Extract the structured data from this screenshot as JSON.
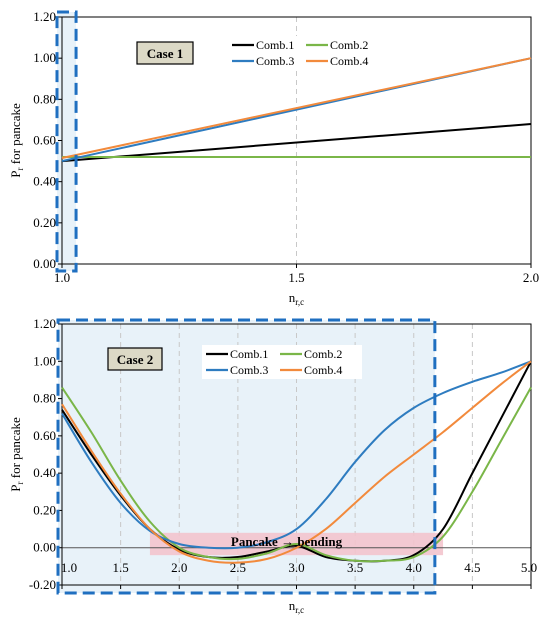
{
  "colors": {
    "comb1": "#000000",
    "comb2": "#7ab648",
    "comb3": "#2e7cc0",
    "comb4": "#f28a3c",
    "highlight_box": "#1f6fc0",
    "highlight_fill": "#e8f2f9",
    "pink_band": "#f3c4cd",
    "case_box_fill": "#dcd9c6",
    "grid": "#c8c8c8"
  },
  "chart_data": [
    {
      "type": "line",
      "title": "",
      "xlabel": "n",
      "xlabel_sub": "r,c",
      "ylabel_main": "P",
      "ylabel_sub": "r",
      "ylabel_rest": " for pancake",
      "xlim": [
        1.0,
        2.0
      ],
      "ylim": [
        0.0,
        1.2
      ],
      "xticks": [
        1.0,
        1.5,
        2.0
      ],
      "xtick_labels": [
        "1.0",
        "1.5",
        "2.0"
      ],
      "yticks": [
        0.0,
        0.2,
        0.4,
        0.6,
        0.8,
        1.0,
        1.2
      ],
      "ytick_labels": [
        "0.00",
        "0.20",
        "0.40",
        "0.60",
        "0.80",
        "1.00",
        "1.20"
      ],
      "xgrid_dashed": [
        1.5
      ],
      "case_label": "Case 1",
      "legend": [
        "Comb.1",
        "Comb.2",
        "Comb.3",
        "Comb.4"
      ],
      "highlight_x": [
        1.0,
        1.03
      ],
      "series": [
        {
          "name": "Comb.1",
          "x": [
            1.0,
            2.0
          ],
          "y": [
            0.5,
            0.68
          ]
        },
        {
          "name": "Comb.2",
          "x": [
            1.0,
            2.0
          ],
          "y": [
            0.52,
            0.52
          ]
        },
        {
          "name": "Comb.3",
          "x": [
            1.0,
            2.0
          ],
          "y": [
            0.5,
            1.0
          ]
        },
        {
          "name": "Comb.4",
          "x": [
            1.0,
            2.0
          ],
          "y": [
            0.515,
            1.0
          ]
        }
      ]
    },
    {
      "type": "line",
      "title": "",
      "xlabel": "n",
      "xlabel_sub": "r,c",
      "ylabel_main": "P",
      "ylabel_sub": "r",
      "ylabel_rest": " for pancake",
      "xlim": [
        1.0,
        5.0
      ],
      "ylim": [
        -0.2,
        1.2
      ],
      "xticks": [
        1.0,
        1.5,
        2.0,
        2.5,
        3.0,
        3.5,
        4.0,
        4.5,
        5.0
      ],
      "xtick_labels": [
        "1.0",
        "1.5",
        "2.0",
        "2.5",
        "3.0",
        "3.5",
        "4.0",
        "4.5",
        "5.0"
      ],
      "yticks": [
        -0.2,
        0.0,
        0.2,
        0.4,
        0.6,
        0.8,
        1.0,
        1.2
      ],
      "ytick_labels": [
        "-0.20",
        "0.00",
        "0.20",
        "0.40",
        "0.60",
        "0.80",
        "1.00",
        "1.20"
      ],
      "xgrid_dashed": [
        1.5,
        2.0,
        2.5,
        3.0,
        3.5,
        4.0,
        4.5
      ],
      "case_label": "Case 2",
      "legend": [
        "Comb.1",
        "Comb.2",
        "Comb.3",
        "Comb.4"
      ],
      "highlight_x": [
        1.0,
        4.18
      ],
      "band": {
        "label": "Pancake → bending",
        "x": [
          1.75,
          4.25
        ],
        "y": [
          -0.04,
          0.08
        ]
      },
      "series": [
        {
          "name": "Comb.1",
          "x": [
            1.0,
            1.25,
            1.5,
            1.75,
            2.0,
            2.25,
            2.5,
            2.75,
            3.0,
            3.25,
            3.5,
            3.75,
            4.0,
            4.25,
            4.5,
            4.75,
            5.0
          ],
          "y": [
            0.74,
            0.5,
            0.28,
            0.1,
            -0.01,
            -0.05,
            -0.05,
            -0.02,
            0.01,
            -0.05,
            -0.07,
            -0.07,
            -0.04,
            0.1,
            0.4,
            0.7,
            1.0
          ]
        },
        {
          "name": "Comb.2",
          "x": [
            1.0,
            1.25,
            1.5,
            1.75,
            2.0,
            2.25,
            2.5,
            2.75,
            3.0,
            3.25,
            3.5,
            3.75,
            4.0,
            4.25,
            4.5,
            4.75,
            5.0
          ],
          "y": [
            0.86,
            0.62,
            0.36,
            0.14,
            0.0,
            -0.05,
            -0.06,
            -0.03,
            0.02,
            -0.04,
            -0.07,
            -0.07,
            -0.05,
            0.06,
            0.3,
            0.58,
            0.86
          ]
        },
        {
          "name": "Comb.3",
          "x": [
            1.0,
            1.25,
            1.5,
            1.75,
            2.0,
            2.25,
            2.5,
            2.75,
            3.0,
            3.25,
            3.5,
            3.75,
            4.0,
            4.25,
            4.5,
            4.75,
            5.0
          ],
          "y": [
            0.72,
            0.46,
            0.24,
            0.09,
            0.02,
            0.0,
            0.0,
            0.03,
            0.1,
            0.26,
            0.46,
            0.63,
            0.75,
            0.83,
            0.89,
            0.94,
            1.0
          ]
        },
        {
          "name": "Comb.4",
          "x": [
            1.0,
            1.25,
            1.5,
            1.75,
            2.0,
            2.25,
            2.5,
            2.75,
            3.0,
            3.25,
            3.5,
            3.75,
            4.0,
            4.25,
            4.5,
            4.75,
            5.0
          ],
          "y": [
            0.77,
            0.52,
            0.29,
            0.1,
            -0.02,
            -0.07,
            -0.08,
            -0.06,
            0.0,
            0.1,
            0.24,
            0.38,
            0.5,
            0.62,
            0.75,
            0.88,
            1.0
          ]
        }
      ]
    }
  ]
}
